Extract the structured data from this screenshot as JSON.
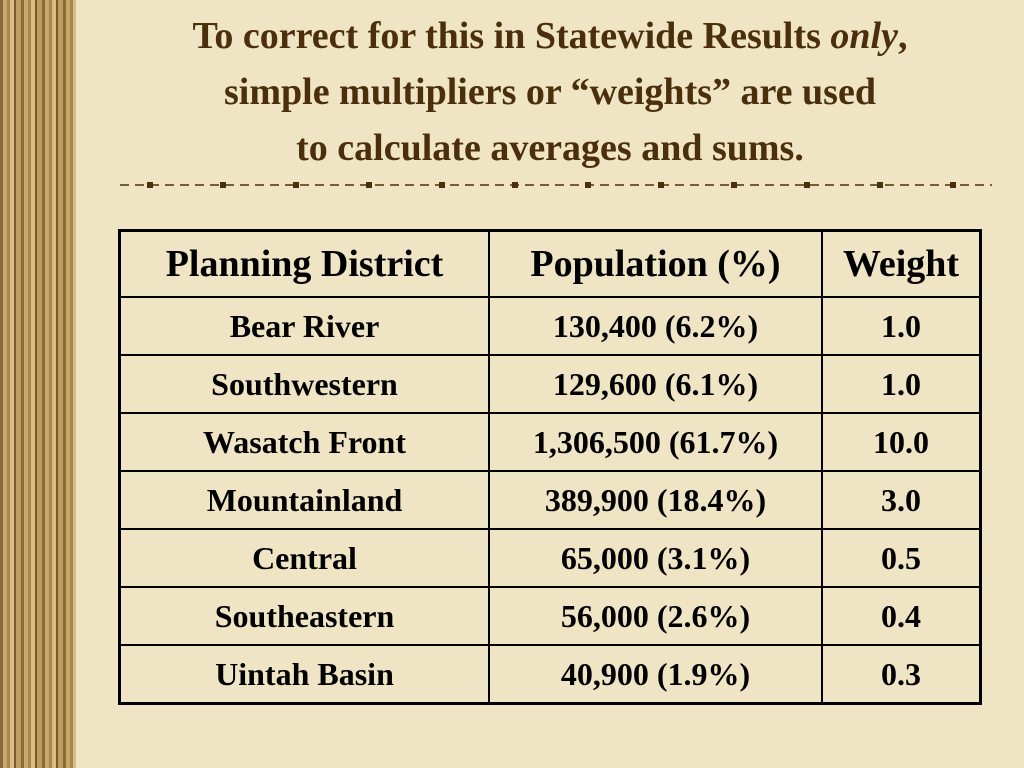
{
  "title": {
    "line1": [
      "To correct for this in Statewide Results",
      "only",
      ","
    ],
    "line2": "simple multipliers or “weights” are used",
    "line3": "to calculate averages and sums."
  },
  "table": {
    "header": [
      "Planning District",
      "Population (%)",
      "Weight"
    ],
    "rows": [
      [
        "Bear River",
        "130,400 (6.2%)",
        "1.0"
      ],
      [
        "Southwestern",
        "129,600 (6.1%)",
        "1.0"
      ],
      [
        "Wasatch Front",
        "1,306,500 (61.7%)",
        "10.0"
      ],
      [
        "Mountainland",
        "389,900 (18.4%)",
        "3.0"
      ],
      [
        "Central",
        "65,000 (3.1%)",
        "0.5"
      ],
      [
        "Southeastern",
        "56,000 (2.6%)",
        "0.4"
      ],
      [
        "Uintah Basin",
        "40,900 (1.9%)",
        "0.3"
      ]
    ]
  }
}
